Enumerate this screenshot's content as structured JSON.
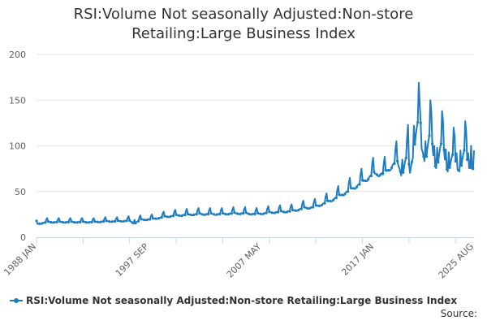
{
  "chart_data": {
    "type": "line",
    "title_lines": [
      "RSI:Volume Not seasonally Adjusted:Non-store",
      "Retailing:Large Business Index"
    ],
    "xlabel": "",
    "ylabel": "",
    "ylim": [
      0,
      200
    ],
    "xlim": [
      "1988-01",
      "2025-08"
    ],
    "y_ticks": [
      0,
      50,
      100,
      150,
      200
    ],
    "x_tick_labels": [
      {
        "date": "1988-01",
        "label": "1988 JAN"
      },
      {
        "date": "1997-09",
        "label": "1997 SEP"
      },
      {
        "date": "2007-05",
        "label": "2007 MAY"
      },
      {
        "date": "2017-01",
        "label": "2017 JAN"
      },
      {
        "date": "2025-08",
        "label": "2025 AUG"
      }
    ],
    "grid": "horizontal",
    "legend_position": "bottom-left",
    "color": "#1f7dc0",
    "series": [
      {
        "name": "RSI:Volume Not seasonally Adjusted:Non-store Retailing:Large Business Index",
        "points": [
          {
            "date": "1988-01",
            "value": 18
          },
          {
            "date": "1988-12",
            "value": 21
          },
          {
            "date": "1989-12",
            "value": 21
          },
          {
            "date": "1990-12",
            "value": 21
          },
          {
            "date": "1991-12",
            "value": 21
          },
          {
            "date": "1992-12",
            "value": 21
          },
          {
            "date": "1993-12",
            "value": 22
          },
          {
            "date": "1994-12",
            "value": 22
          },
          {
            "date": "1995-12",
            "value": 23
          },
          {
            "date": "1996-06",
            "value": 19
          },
          {
            "date": "1996-12",
            "value": 24
          },
          {
            "date": "1997-12",
            "value": 25
          },
          {
            "date": "1998-12",
            "value": 28
          },
          {
            "date": "1999-12",
            "value": 30
          },
          {
            "date": "2000-12",
            "value": 31
          },
          {
            "date": "2001-12",
            "value": 32
          },
          {
            "date": "2002-12",
            "value": 32
          },
          {
            "date": "2003-12",
            "value": 32
          },
          {
            "date": "2004-12",
            "value": 33
          },
          {
            "date": "2005-12",
            "value": 33
          },
          {
            "date": "2006-12",
            "value": 32
          },
          {
            "date": "2007-12",
            "value": 34
          },
          {
            "date": "2008-12",
            "value": 35
          },
          {
            "date": "2009-12",
            "value": 36
          },
          {
            "date": "2010-12",
            "value": 40
          },
          {
            "date": "2011-12",
            "value": 42
          },
          {
            "date": "2012-12",
            "value": 48
          },
          {
            "date": "2013-12",
            "value": 56
          },
          {
            "date": "2014-12",
            "value": 65
          },
          {
            "date": "2015-12",
            "value": 75
          },
          {
            "date": "2016-12",
            "value": 87
          },
          {
            "date": "2017-12",
            "value": 88
          },
          {
            "date": "2018-12",
            "value": 105
          },
          {
            "date": "2019-06",
            "value": 85
          },
          {
            "date": "2019-12",
            "value": 123
          },
          {
            "date": "2020-01",
            "value": 80
          },
          {
            "date": "2020-06",
            "value": 122
          },
          {
            "date": "2020-11",
            "value": 169
          },
          {
            "date": "2021-01",
            "value": 125
          },
          {
            "date": "2021-06",
            "value": 105
          },
          {
            "date": "2021-11",
            "value": 150
          },
          {
            "date": "2022-03",
            "value": 100
          },
          {
            "date": "2022-06",
            "value": 98
          },
          {
            "date": "2022-11",
            "value": 138
          },
          {
            "date": "2023-03",
            "value": 96
          },
          {
            "date": "2023-06",
            "value": 93
          },
          {
            "date": "2023-11",
            "value": 120
          },
          {
            "date": "2024-02",
            "value": 92
          },
          {
            "date": "2024-06",
            "value": 95
          },
          {
            "date": "2024-11",
            "value": 127
          },
          {
            "date": "2025-02",
            "value": 92
          },
          {
            "date": "2025-05",
            "value": 100
          },
          {
            "date": "2025-08",
            "value": 95
          }
        ]
      }
    ]
  },
  "legend": {
    "label": "RSI:Volume Not seasonally Adjusted:Non-store Retailing:Large Business Index"
  },
  "credits": {
    "text": "Source:"
  }
}
